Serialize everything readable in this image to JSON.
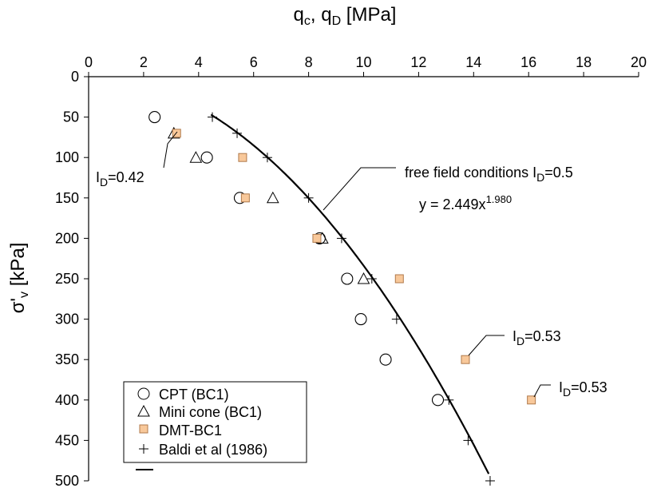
{
  "chart_data": {
    "type": "scatter",
    "x_axis": {
      "label_main": "q",
      "label_sub1": "c",
      "label_sep": ", q",
      "label_sub2": "D",
      "label_unit": " [MPa]",
      "position": "top",
      "min": 0,
      "max": 20,
      "ticks": [
        0,
        2,
        4,
        6,
        8,
        10,
        12,
        14,
        16,
        18,
        20
      ]
    },
    "y_axis": {
      "label_main": "σ'",
      "label_sub": "v",
      "label_unit": " [kPa]",
      "min": 0,
      "max": 500,
      "inverted": true,
      "ticks": [
        0,
        50,
        100,
        150,
        200,
        250,
        300,
        350,
        400,
        450,
        500
      ]
    },
    "grid": false,
    "series": [
      {
        "name": "CPT (BC1)",
        "marker": "circle",
        "points": [
          [
            2.4,
            50
          ],
          [
            4.3,
            100
          ],
          [
            5.5,
            150
          ],
          [
            8.4,
            200
          ],
          [
            9.4,
            250
          ],
          [
            9.9,
            300
          ],
          [
            10.8,
            350
          ],
          [
            12.7,
            400
          ]
        ]
      },
      {
        "name": "Mini cone (BC1)",
        "marker": "triangle",
        "points": [
          [
            3.1,
            70
          ],
          [
            3.9,
            100
          ],
          [
            6.7,
            150
          ],
          [
            8.5,
            200
          ],
          [
            10.0,
            250
          ]
        ]
      },
      {
        "name": "DMT-BC1",
        "marker": "square",
        "color": "#f8c89a",
        "points": [
          [
            3.2,
            70
          ],
          [
            5.6,
            100
          ],
          [
            5.7,
            150
          ],
          [
            8.3,
            200
          ],
          [
            11.3,
            250
          ],
          [
            13.7,
            350
          ],
          [
            16.1,
            400
          ]
        ]
      },
      {
        "name": "Baldi et al (1986)",
        "marker": "plus",
        "points": [
          [
            4.5,
            50
          ],
          [
            5.4,
            70
          ],
          [
            6.5,
            100
          ],
          [
            8.0,
            150
          ],
          [
            9.2,
            200
          ],
          [
            10.3,
            250
          ],
          [
            11.2,
            300
          ],
          [
            13.1,
            400
          ],
          [
            13.8,
            450
          ],
          [
            14.6,
            500
          ]
        ]
      }
    ],
    "fit_curve": {
      "equation_text_main": "y = 2.449x",
      "equation_text_exp": "1.980",
      "coefficient": 2.449,
      "exponent": 1.98,
      "x_range": [
        4.45,
        14.55
      ],
      "note_main": "free field conditions I",
      "note_sub": "D",
      "note_value": "=0.5"
    },
    "annotations": [
      {
        "main": "I",
        "sub": "D",
        "value": "=0.42"
      },
      {
        "main": "I",
        "sub": "D",
        "value": "=0.53"
      },
      {
        "main": "I",
        "sub": "D",
        "value": "=0.53"
      }
    ],
    "legend": {
      "placement": "bottom-left",
      "entries": [
        "CPT (BC1)",
        "Mini cone (BC1)",
        "DMT-BC1",
        "Baldi et al (1986)"
      ]
    },
    "colors": {
      "axis": "#000000",
      "dmt_fill": "#f8c89a",
      "dmt_stroke": "#b07a4c"
    }
  }
}
